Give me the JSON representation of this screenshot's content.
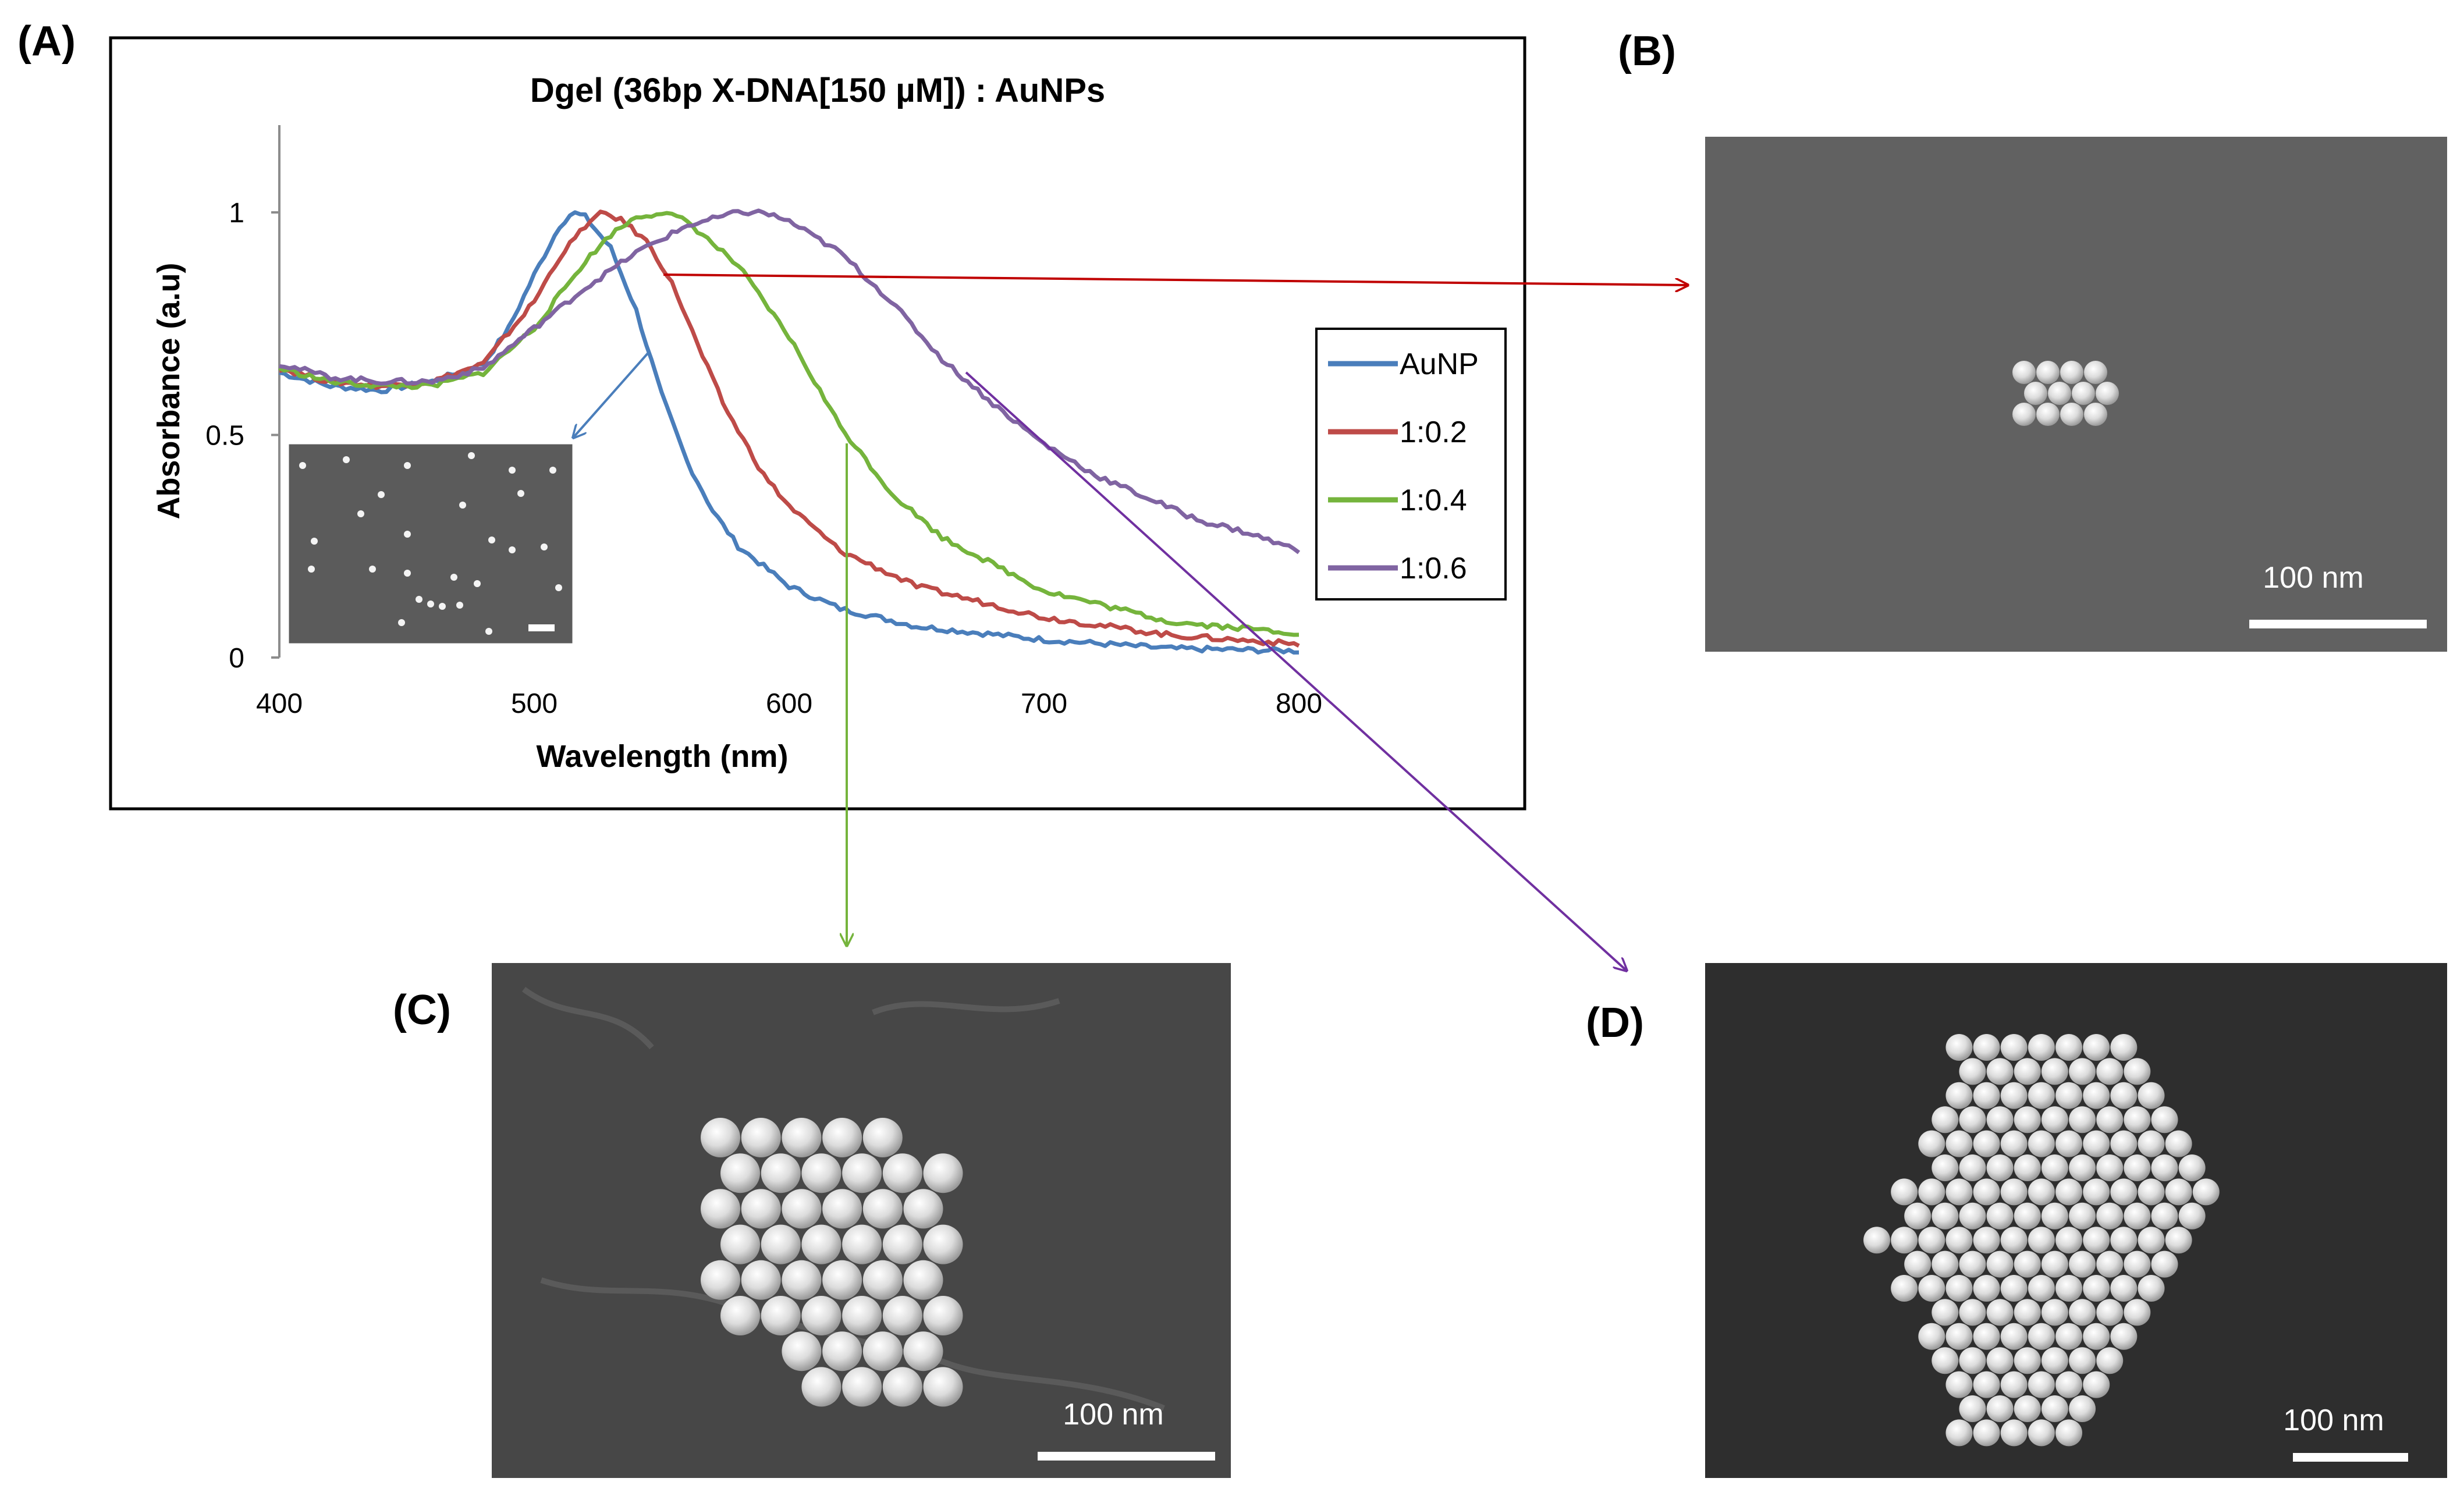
{
  "panels": {
    "A": "(A)",
    "B": "(B)",
    "C": "(C)",
    "D": "(D)"
  },
  "sem_images": {
    "B": {
      "scale_label": "100 nm"
    },
    "C": {
      "scale_label": "100 nm"
    },
    "D": {
      "scale_label": "100 nm"
    }
  },
  "chart_data": {
    "type": "line",
    "title": "Dgel (36bp X-DNA[150 µM]) : AuNPs",
    "xlabel": "Wavelength (nm)",
    "ylabel": "Absorbance (a.u)",
    "xlim": [
      400,
      800
    ],
    "ylim": [
      0,
      1.2
    ],
    "xticks": [
      "400",
      "500",
      "600",
      "700",
      "800"
    ],
    "yticks": [
      "0",
      "0.5",
      "1"
    ],
    "grid": false,
    "legend_position": "right",
    "series": [
      {
        "name": "AuNP",
        "color": "#4a7ebb",
        "x": [
          400,
          420,
          440,
          460,
          480,
          490,
          500,
          510,
          515,
          520,
          530,
          540,
          550,
          560,
          570,
          580,
          600,
          620,
          650,
          700,
          750,
          800
        ],
        "y": [
          0.64,
          0.61,
          0.6,
          0.62,
          0.66,
          0.74,
          0.86,
          0.97,
          1.0,
          0.99,
          0.92,
          0.78,
          0.59,
          0.44,
          0.33,
          0.25,
          0.16,
          0.11,
          0.07,
          0.04,
          0.02,
          0.015
        ]
      },
      {
        "name": "1:0.2",
        "color": "#be4b48",
        "x": [
          400,
          420,
          440,
          460,
          480,
          500,
          510,
          520,
          527,
          535,
          545,
          555,
          565,
          575,
          590,
          600,
          620,
          650,
          700,
          750,
          800
        ],
        "y": [
          0.65,
          0.62,
          0.61,
          0.62,
          0.66,
          0.8,
          0.9,
          0.97,
          1.0,
          0.98,
          0.93,
          0.83,
          0.69,
          0.56,
          0.41,
          0.34,
          0.24,
          0.16,
          0.09,
          0.05,
          0.03
        ]
      },
      {
        "name": "1:0.4",
        "color": "#75b43c",
        "x": [
          400,
          420,
          440,
          460,
          480,
          500,
          520,
          530,
          540,
          550,
          560,
          580,
          600,
          620,
          640,
          660,
          700,
          750,
          800
        ],
        "y": [
          0.65,
          0.62,
          0.61,
          0.61,
          0.64,
          0.74,
          0.89,
          0.95,
          0.99,
          1.0,
          0.98,
          0.88,
          0.72,
          0.52,
          0.37,
          0.27,
          0.15,
          0.08,
          0.055
        ]
      },
      {
        "name": "1:0.6",
        "color": "#8064a2",
        "x": [
          400,
          420,
          440,
          460,
          480,
          500,
          520,
          540,
          560,
          580,
          590,
          600,
          620,
          640,
          660,
          680,
          700,
          720,
          740,
          760,
          780,
          800
        ],
        "y": [
          0.66,
          0.63,
          0.62,
          0.62,
          0.65,
          0.74,
          0.83,
          0.91,
          0.97,
          1.0,
          1.0,
          0.98,
          0.91,
          0.8,
          0.67,
          0.57,
          0.48,
          0.41,
          0.36,
          0.31,
          0.28,
          0.24
        ]
      }
    ]
  }
}
